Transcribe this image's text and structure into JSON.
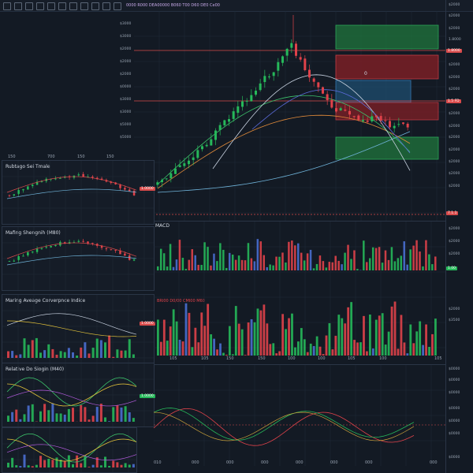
{
  "toolbar": {
    "icons": [
      "menu-icon",
      "chart-type-icon",
      "indicator-icon",
      "timeframe-icon",
      "compare-icon",
      "alert-icon",
      "replay-icon",
      "layout-icon",
      "settings-icon",
      "fullscreen-icon",
      "snapshot-icon"
    ],
    "header_text": "0000 R000 DEA00000 B060 T00 D60 DE0 Ce00"
  },
  "main_chart": {
    "price_axis": [
      "$2000",
      "$2000",
      "$2000",
      "1.8000",
      "$2000",
      "$2000",
      "$2000",
      "1.5 FD",
      "$2000",
      "$2000",
      "$2000",
      "$2000",
      "$2000",
      "$2000",
      "$2000"
    ],
    "left_scale": [
      "$3000",
      "$3000",
      "$2000",
      "$2000",
      "$2000",
      "$0000",
      "$3000",
      "$3000",
      "$5000",
      "$5000"
    ],
    "x_labels": [
      "150",
      "700",
      "150",
      "150"
    ],
    "badges": [
      {
        "label": "1.8000",
        "color": "#d94b4b"
      },
      {
        "label": "1.5 FD",
        "color": "#d94b4b"
      },
      {
        "label": "7.1.1",
        "color": "#d94b4b"
      }
    ],
    "marker": "0"
  },
  "left_panels": [
    {
      "title": "Rubtago Sei Tmale",
      "scale": [
        "$000",
        "$000",
        "$000",
        "$000",
        "$000",
        "$000"
      ],
      "badge": "1.0000"
    },
    {
      "title": "Mafing Shengnih (M80)",
      "scale": [
        "$000",
        "$000",
        "$000",
        "$000",
        "$000"
      ]
    },
    {
      "title": "Maring Aveage Corverpnce Indice",
      "scale": [
        "$000",
        "$000",
        "$000",
        "$000",
        "$000"
      ],
      "badge": "1.0000"
    },
    {
      "title": "Relative Do Siogin (M40)",
      "scale": [
        "$000",
        "$000",
        "$000",
        "$000",
        "$000"
      ],
      "badge": "1.0000"
    }
  ],
  "macd": {
    "label": "MACD",
    "header": "BRI00 D0/00 CMI00 M60",
    "axis": [
      "$2000",
      "$2000",
      "$2000",
      "$2000",
      "$3500"
    ],
    "badge": "1.00",
    "x_labels": [
      "105",
      "105",
      "150",
      "150",
      "100",
      "100",
      "105",
      "100",
      "105"
    ]
  },
  "rsi": {
    "axis": [
      "$0000",
      "$0000",
      "$0000",
      "$0000",
      "$0000",
      "$0000",
      "$0000"
    ],
    "x_labels": [
      "010",
      "000",
      "000",
      "000",
      "000",
      "000",
      "000",
      "000"
    ]
  },
  "colors": {
    "up": "#26b85a",
    "down": "#e0424a",
    "bg": "#131a24",
    "grid": "#202a38"
  }
}
